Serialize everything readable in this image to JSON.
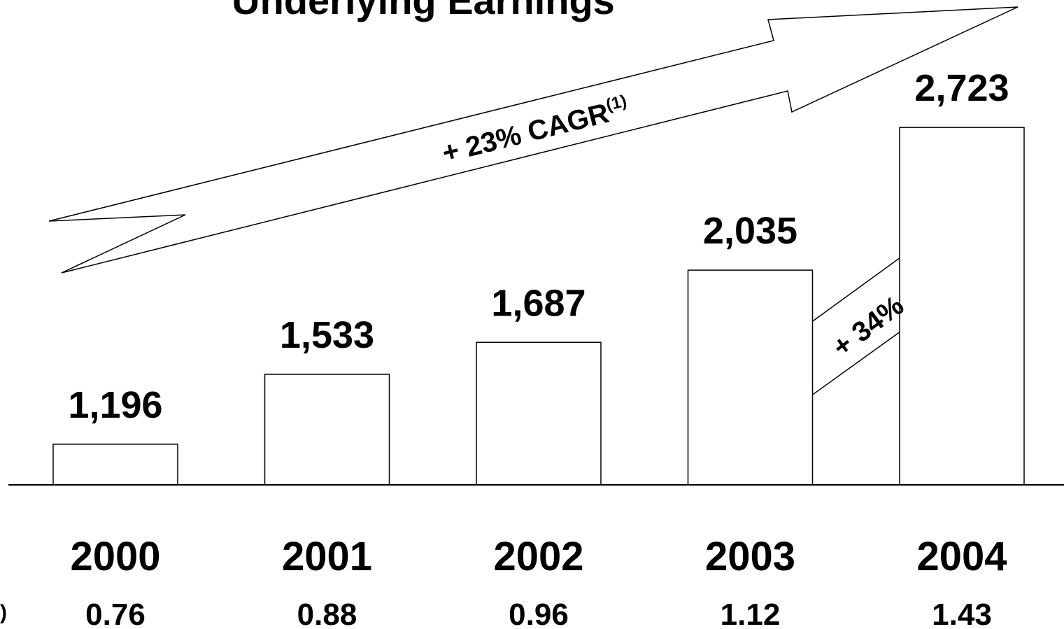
{
  "chart_data": {
    "type": "bar",
    "title": "Underlying Earnings",
    "categories": [
      "2000",
      "2001",
      "2002",
      "2003",
      "2004"
    ],
    "values": [
      1196,
      1533,
      1687,
      2035,
      2723
    ],
    "value_labels": [
      "1,196",
      "1,533",
      "1,687",
      "2,035",
      "2,723"
    ],
    "color": "#ffffff",
    "ylim": [
      1000,
      3000
    ],
    "annotations": [
      {
        "text": "+ 23% CAGR",
        "superscript": "(1)"
      },
      {
        "text": "+ 34%"
      }
    ],
    "row_label": ")",
    "row_values": [
      0.76,
      0.88,
      0.96,
      1.12,
      1.43
    ]
  }
}
